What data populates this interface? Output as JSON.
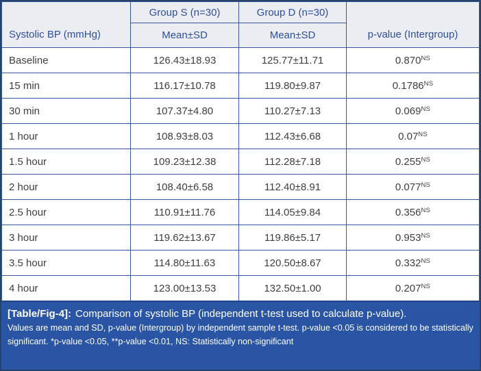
{
  "table": {
    "row_header_title": "Systolic BP (mmHg)",
    "group_headers": [
      "Group S (n=30)",
      "Group D (n=30)"
    ],
    "subheaders": [
      "Mean±SD",
      "Mean±SD"
    ],
    "p_header": "p-value (Intergroup)",
    "rows": [
      {
        "label": "Baseline",
        "group_s": "126.43±18.93",
        "group_d": "125.77±11.71",
        "p_value": "0.870",
        "p_sup": "NS"
      },
      {
        "label": "15 min",
        "group_s": "116.17±10.78",
        "group_d": "119.80±9.87",
        "p_value": "0.1786",
        "p_sup": "NS"
      },
      {
        "label": "30 min",
        "group_s": "107.37±4.80",
        "group_d": "110.27±7.13",
        "p_value": "0.069",
        "p_sup": "NS"
      },
      {
        "label": "1 hour",
        "group_s": "108.93±8.03",
        "group_d": "112.43±6.68",
        "p_value": "0.07",
        "p_sup": "NS"
      },
      {
        "label": "1.5 hour",
        "group_s": "109.23±12.38",
        "group_d": "112.28±7.18",
        "p_value": "0.255",
        "p_sup": "NS"
      },
      {
        "label": "2 hour",
        "group_s": "108.40±6.58",
        "group_d": "112.40±8.91",
        "p_value": "0.077",
        "p_sup": "NS"
      },
      {
        "label": "2.5 hour",
        "group_s": "110.91±11.76",
        "group_d": "114.05±9.84",
        "p_value": "0.356",
        "p_sup": "NS"
      },
      {
        "label": "3 hour",
        "group_s": "119.62±13.67",
        "group_d": "119.86±5.17",
        "p_value": "0.953",
        "p_sup": "NS"
      },
      {
        "label": "3.5 hour",
        "group_s": "114.80±11.63",
        "group_d": "120.50±8.67",
        "p_value": "0.332",
        "p_sup": "NS"
      },
      {
        "label": "4 hour",
        "group_s": "123.00±13.53",
        "group_d": "132.50±1.00",
        "p_value": "0.207",
        "p_sup": "NS"
      }
    ]
  },
  "footer": {
    "caption_label": "[Table/Fig-4]:",
    "caption_text": "Comparison of systolic BP (independent t-test used to calculate p-value).",
    "notes": "Values are mean and SD, p-value (Intergroup) by independent sample t-test. p-value <0.05 is considered to be statistically significant. *p-value <0.05, **p-value <0.01, NS: Statistically non-significant"
  },
  "colors": {
    "header_text_blue": "#2b4f9e",
    "grid_border_blue": "#35589b",
    "outer_border_navy": "#27436b",
    "header_background": "#ecedf3",
    "body_text": "#3e3e3e",
    "footer_background": "#2a55a4",
    "footer_text": "#ffffff"
  }
}
